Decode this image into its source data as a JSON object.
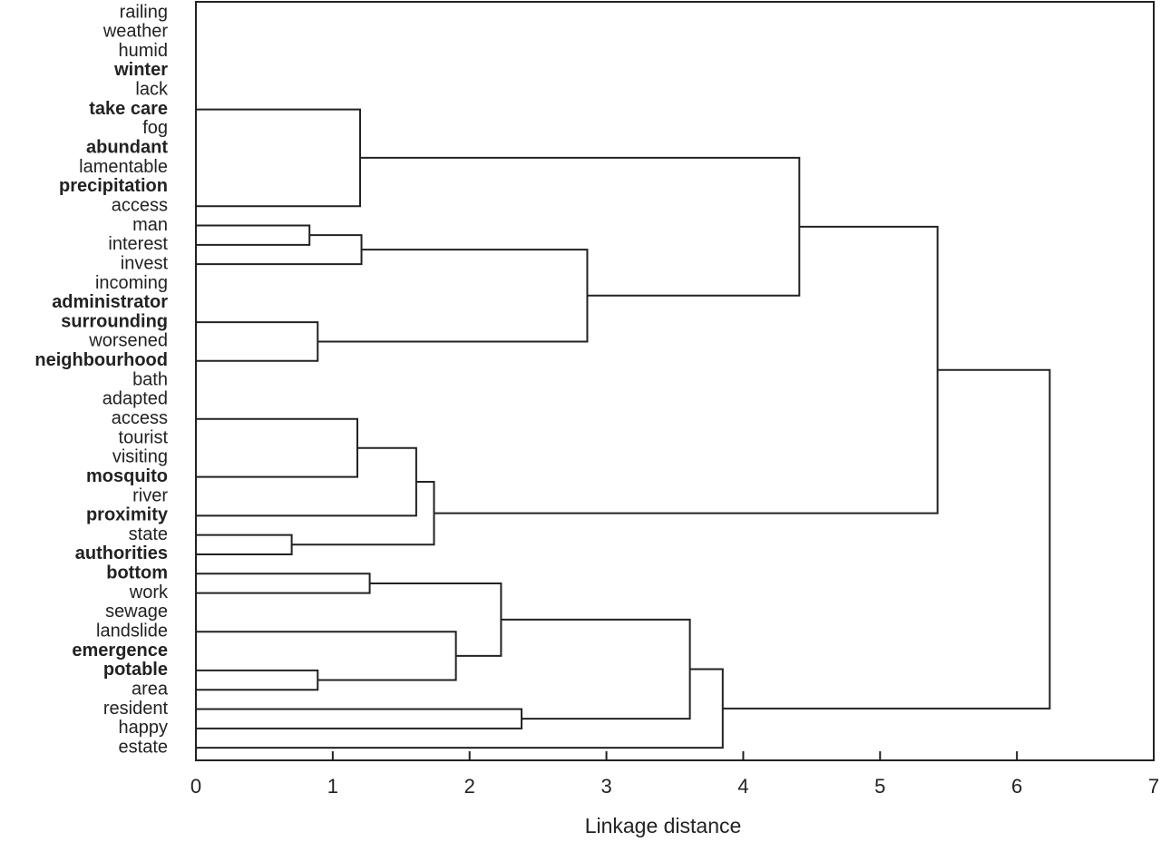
{
  "chart_data": {
    "type": "dendrogram",
    "xlabel": "Linkage distance",
    "leaves": [
      "railing",
      "weather",
      "humid",
      "winter",
      "lack",
      "take care",
      "fog",
      "abundant",
      "lamentable",
      "precipitation",
      "access",
      "man",
      "interest",
      "invest",
      "incoming",
      "administrator",
      "surrounding",
      "worsened",
      "neighbourhood",
      "bath",
      "adapted",
      "access",
      "tourist",
      "visiting",
      "mosquito",
      "river",
      "proximity",
      "state",
      "authorities",
      "bottom",
      "work",
      "sewage",
      "landslide",
      "emergence",
      "potable",
      "area",
      "resident",
      "happy",
      "estate"
    ],
    "bold": [
      3,
      5,
      7,
      9,
      15,
      16,
      18,
      24,
      26,
      28,
      29,
      33,
      34
    ],
    "merges": [
      {
        "a": 5,
        "b": 10,
        "height": 1.2
      },
      {
        "a": 11,
        "b": 12,
        "height": 0.83
      },
      {
        "a": 40,
        "b": 13,
        "height": 1.21
      },
      {
        "a": 16,
        "b": 18,
        "height": 0.89
      },
      {
        "a": 41,
        "b": 42,
        "height": 2.86
      },
      {
        "a": 39,
        "b": 43,
        "height": 4.41
      },
      {
        "a": 21,
        "b": 24,
        "height": 1.18
      },
      {
        "a": 45,
        "b": 26,
        "height": 1.61
      },
      {
        "a": 27,
        "b": 28,
        "height": 0.7
      },
      {
        "a": 46,
        "b": 47,
        "height": 1.74
      },
      {
        "a": 44,
        "b": 48,
        "height": 5.42
      },
      {
        "a": 29,
        "b": 30,
        "height": 1.27
      },
      {
        "a": 34,
        "b": 35,
        "height": 0.89
      },
      {
        "a": 32,
        "b": 51,
        "height": 1.9
      },
      {
        "a": 50,
        "b": 52,
        "height": 2.23
      },
      {
        "a": 36,
        "b": 37,
        "height": 2.38
      },
      {
        "a": 53,
        "b": 54,
        "height": 3.61
      },
      {
        "a": 55,
        "b": 38,
        "height": 3.85
      },
      {
        "a": 49,
        "b": 56,
        "height": 6.24
      }
    ],
    "xlim": [
      0,
      7
    ],
    "xticks": [
      0,
      1,
      2,
      3,
      4,
      5,
      6,
      7
    ]
  }
}
